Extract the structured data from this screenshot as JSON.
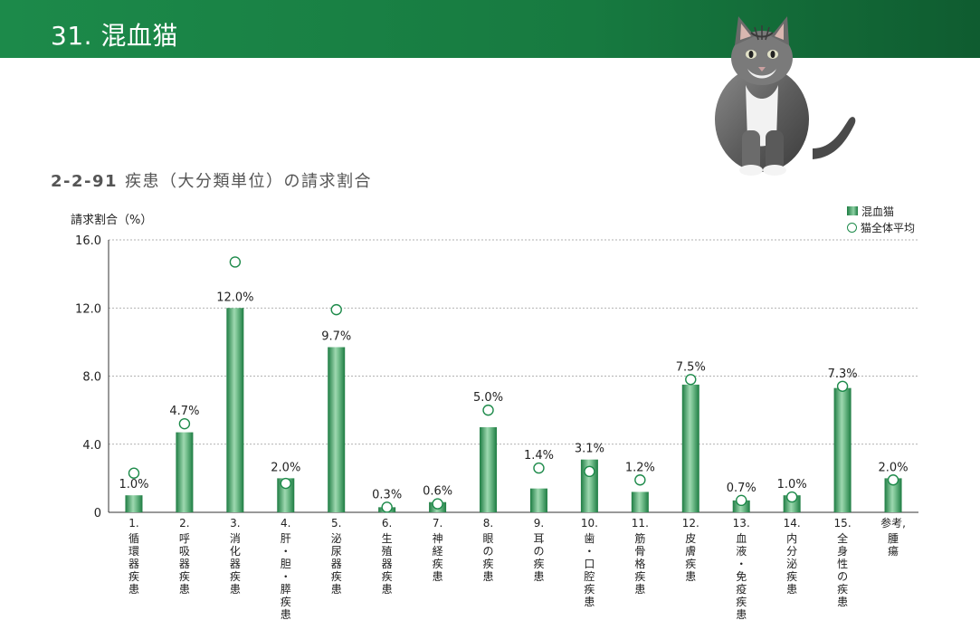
{
  "header": {
    "title": "31. 混血猫"
  },
  "section": {
    "number": "2-2-91",
    "title": "疾患（大分類単位）の請求割合"
  },
  "colors": {
    "header_green": "#1c8a4a",
    "bar_green": "#1d7c42",
    "marker_green": "#1d8a4a"
  },
  "icons": {
    "cat_photo": "cat-illustration"
  },
  "chart_data": {
    "type": "bar",
    "title": "",
    "ylabel": "請求割合（%）",
    "xlabel": "",
    "ylim": [
      0,
      16
    ],
    "yticks": [
      "16.0",
      "12.0",
      "8.0",
      "4.0",
      "0"
    ],
    "grid": true,
    "legend_position": "top-right",
    "categories": [
      {
        "num": "1.",
        "name": "循環器疾患"
      },
      {
        "num": "2.",
        "name": "呼吸器疾患"
      },
      {
        "num": "3.",
        "name": "消化器疾患"
      },
      {
        "num": "4.",
        "name": "肝・胆・膵疾患"
      },
      {
        "num": "5.",
        "name": "泌尿器疾患"
      },
      {
        "num": "6.",
        "name": "生殖器疾患"
      },
      {
        "num": "7.",
        "name": "神経疾患"
      },
      {
        "num": "8.",
        "name": "眼の疾患"
      },
      {
        "num": "9.",
        "name": "耳の疾患"
      },
      {
        "num": "10.",
        "name": "歯・口腔疾患"
      },
      {
        "num": "11.",
        "name": "筋骨格疾患"
      },
      {
        "num": "12.",
        "name": "皮膚疾患"
      },
      {
        "num": "13.",
        "name": "血液・免疫疾患"
      },
      {
        "num": "14.",
        "name": "内分泌疾患"
      },
      {
        "num": "15.",
        "name": "全身性の疾患"
      },
      {
        "num": "参考,",
        "name": "腫瘍"
      }
    ],
    "series": [
      {
        "name": "混血猫",
        "kind": "bar",
        "values": [
          1.0,
          4.7,
          12.0,
          2.0,
          9.7,
          0.3,
          0.6,
          5.0,
          1.4,
          3.1,
          1.2,
          7.5,
          0.7,
          1.0,
          7.3,
          2.0
        ],
        "labels": [
          "1.0%",
          "4.7%",
          "12.0%",
          "2.0%",
          "9.7%",
          "0.3%",
          "0.6%",
          "5.0%",
          "1.4%",
          "3.1%",
          "1.2%",
          "7.5%",
          "0.7%",
          "1.0%",
          "7.3%",
          "2.0%"
        ]
      },
      {
        "name": "猫全体平均",
        "kind": "marker",
        "values": [
          2.3,
          5.2,
          14.7,
          1.7,
          11.9,
          0.3,
          0.5,
          6.0,
          2.6,
          2.4,
          1.9,
          7.8,
          0.7,
          0.9,
          7.4,
          1.9
        ]
      }
    ]
  }
}
